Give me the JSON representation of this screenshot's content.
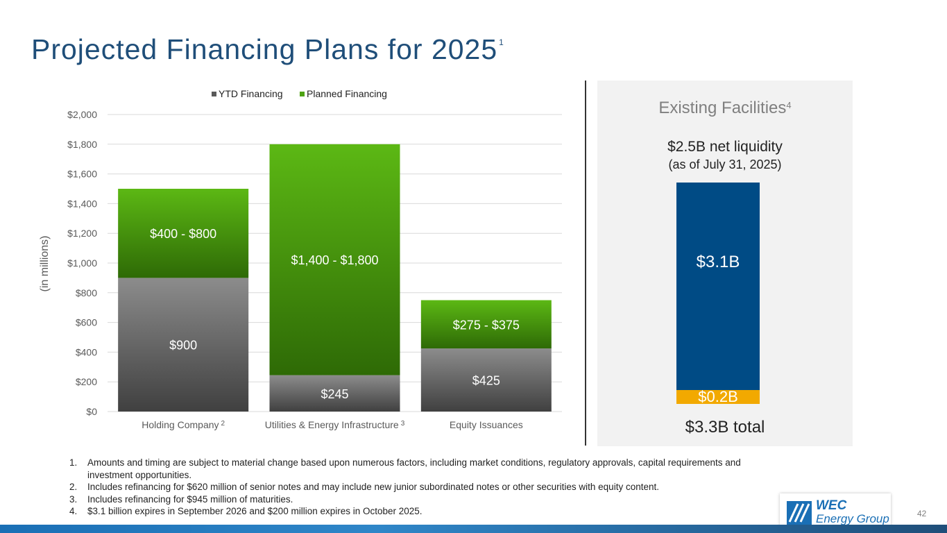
{
  "title": "Projected Financing Plans for 2025",
  "title_footnote": "1",
  "chart_data": {
    "type": "bar",
    "stacked": true,
    "title": "",
    "ylabel": "(in millions)",
    "ylim": [
      0,
      2000
    ],
    "yticks": [
      0,
      200,
      400,
      600,
      800,
      1000,
      1200,
      1400,
      1600,
      1800,
      2000
    ],
    "ytick_labels": [
      "$0",
      "$200",
      "$400",
      "$600",
      "$800",
      "$1,000",
      "$1,200",
      "$1,400",
      "$1,600",
      "$1,800",
      "$2,000"
    ],
    "grid": true,
    "legend_position": "top",
    "categories": [
      "Holding Company",
      "Utilities & Energy Infrastructure",
      "Equity Issuances"
    ],
    "category_footnotes": [
      "2",
      "3",
      ""
    ],
    "series": [
      {
        "name": "YTD Financing",
        "color": "#595959",
        "values": [
          900,
          245,
          425
        ],
        "labels": [
          "$900",
          "$245",
          "$425"
        ]
      },
      {
        "name": "Planned Financing",
        "color": "#4ea313",
        "values": [
          600,
          1555,
          325
        ],
        "labels": [
          "$400 - $800",
          "$1,400 - $1,800",
          "$275 - $375"
        ]
      }
    ]
  },
  "facilities": {
    "title": "Existing Facilities",
    "title_footnote": "4",
    "net_liquidity": "$2.5B net liquidity",
    "as_of": "(as of July 31, 2025)",
    "bar_segments": [
      {
        "label": "$3.1B",
        "value": 3.1,
        "color": "#004b85"
      },
      {
        "label": "$0.2B",
        "value": 0.2,
        "color": "#f2a900"
      }
    ],
    "total": "$3.3B total"
  },
  "footnotes": [
    {
      "num": "1.",
      "text": "Amounts and timing are subject to material change based upon numerous factors, including market conditions, regulatory approvals, capital requirements and investment opportunities."
    },
    {
      "num": "2.",
      "text": "Includes refinancing for $620 million of senior notes and may include new junior subordinated notes or other securities with equity content."
    },
    {
      "num": "3.",
      "text": "Includes refinancing for $945 million of maturities."
    },
    {
      "num": "4.",
      "text": "$3.1 billion expires in September 2026 and $200 million expires in October 2025."
    }
  ],
  "page_number": "42",
  "logo": {
    "line1": "WEC",
    "line2": "Energy Group"
  }
}
